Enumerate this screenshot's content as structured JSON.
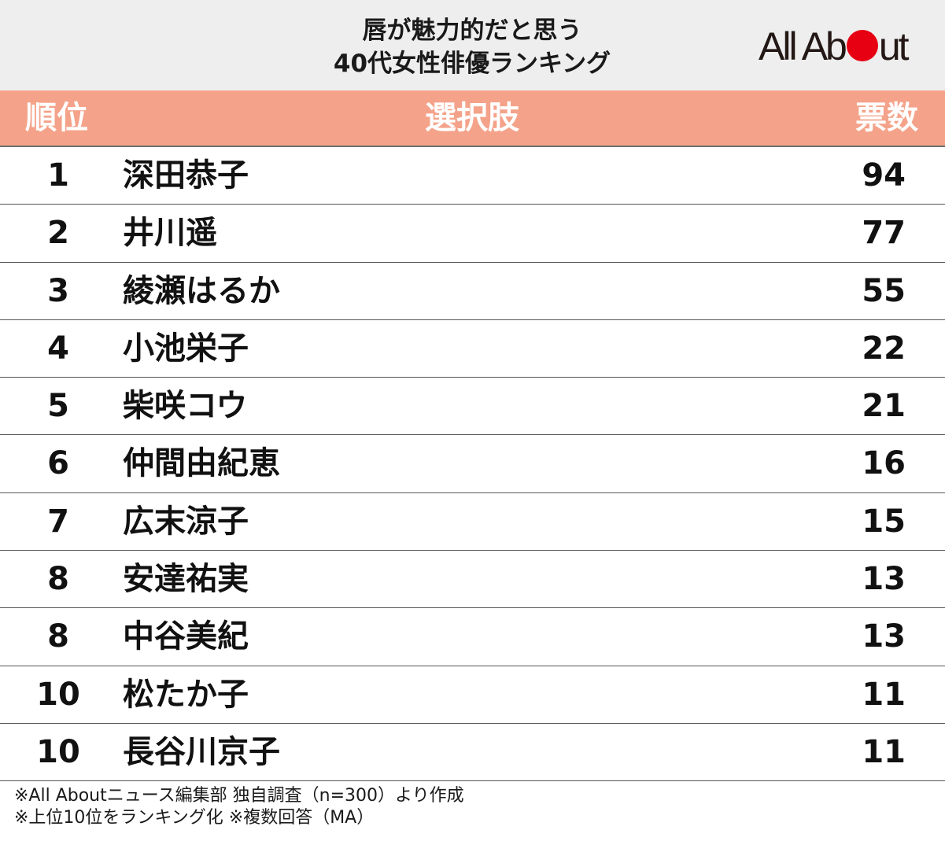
{
  "header": {
    "title_line1": "唇が魅力的だと思う",
    "title_line2": "40代女性俳優ランキング",
    "logo": {
      "text_before": "All Ab",
      "text_after": "ut",
      "dot_color": "#e60012"
    }
  },
  "colors": {
    "header_band": "#f4a38a",
    "title_band": "#eeeeee"
  },
  "chart_data": {
    "type": "table",
    "title": "唇が魅力的だと思う 40代女性俳優ランキング",
    "columns": [
      "順位",
      "選択肢",
      "票数"
    ],
    "rows": [
      {
        "rank": "1",
        "name": "深田恭子",
        "votes": "94"
      },
      {
        "rank": "2",
        "name": "井川遥",
        "votes": "77"
      },
      {
        "rank": "3",
        "name": "綾瀬はるか",
        "votes": "55"
      },
      {
        "rank": "4",
        "name": "小池栄子",
        "votes": "22"
      },
      {
        "rank": "5",
        "name": "柴咲コウ",
        "votes": "21"
      },
      {
        "rank": "6",
        "name": "仲間由紀恵",
        "votes": "16"
      },
      {
        "rank": "7",
        "name": "広末涼子",
        "votes": "15"
      },
      {
        "rank": "8",
        "name": "安達祐実",
        "votes": "13"
      },
      {
        "rank": "8",
        "name": "中谷美紀",
        "votes": "13"
      },
      {
        "rank": "10",
        "name": "松たか子",
        "votes": "11"
      },
      {
        "rank": "10",
        "name": "長谷川京子",
        "votes": "11"
      }
    ]
  },
  "footnotes": [
    "※All Aboutニュース編集部 独自調査（n=300）より作成",
    "※上位10位をランキング化 ※複数回答（MA）"
  ]
}
